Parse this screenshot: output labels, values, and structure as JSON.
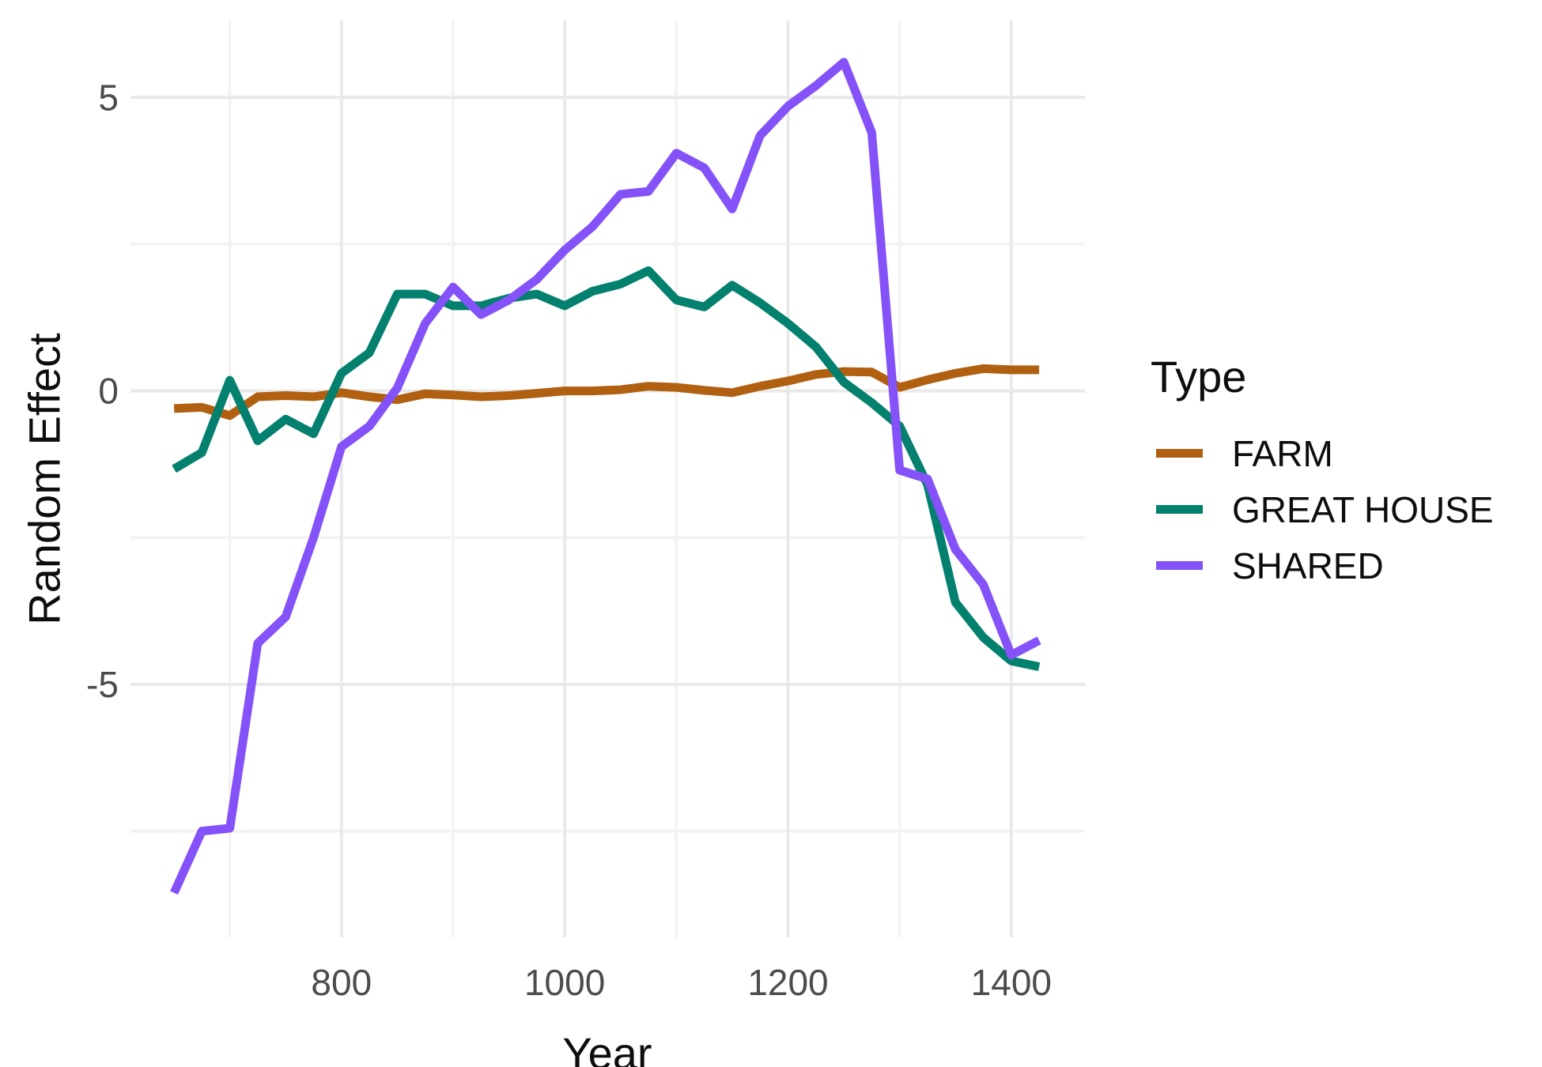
{
  "chart_data": {
    "type": "line",
    "title": "",
    "xlabel": "Year",
    "ylabel": "Random Effect",
    "legend_title": "Type",
    "legend_position": "right",
    "grid": true,
    "xlim": [
      611,
      1466
    ],
    "ylim": [
      -9.31,
      6.31
    ],
    "x_major_ticks": [
      800,
      1000,
      1200,
      1400
    ],
    "x_minor_ticks": [
      700,
      900,
      1100,
      1300
    ],
    "y_major_ticks": [
      5,
      0,
      -5
    ],
    "y_minor_ticks": [
      2.5,
      -2.5,
      -7.5
    ],
    "x": [
      650,
      675,
      700,
      725,
      750,
      775,
      800,
      825,
      850,
      875,
      900,
      925,
      950,
      975,
      1000,
      1025,
      1050,
      1075,
      1100,
      1125,
      1150,
      1175,
      1200,
      1225,
      1250,
      1275,
      1300,
      1325,
      1350,
      1375,
      1400,
      1425
    ],
    "series": [
      {
        "name": "FARM",
        "color": "#b06010",
        "values": [
          -0.3,
          -0.28,
          -0.42,
          -0.1,
          -0.08,
          -0.1,
          -0.03,
          -0.1,
          -0.15,
          -0.05,
          -0.07,
          -0.1,
          -0.08,
          -0.04,
          0.0,
          0.0,
          0.02,
          0.08,
          0.06,
          0.01,
          -0.03,
          0.08,
          0.17,
          0.28,
          0.33,
          0.32,
          0.06,
          0.19,
          0.3,
          0.38,
          0.36,
          0.36
        ]
      },
      {
        "name": "GREAT HOUSE",
        "color": "#04806f",
        "values": [
          -1.33,
          -1.05,
          0.18,
          -0.85,
          -0.48,
          -0.73,
          0.3,
          0.65,
          1.65,
          1.65,
          1.45,
          1.45,
          1.58,
          1.65,
          1.45,
          1.7,
          1.82,
          2.05,
          1.55,
          1.43,
          1.8,
          1.5,
          1.15,
          0.75,
          0.15,
          -0.2,
          -0.6,
          -1.6,
          -3.6,
          -4.2,
          -4.6,
          -4.7
        ]
      },
      {
        "name": "SHARED",
        "color": "#8452f8",
        "values": [
          -8.55,
          -7.5,
          -7.45,
          -4.3,
          -3.85,
          -2.5,
          -0.95,
          -0.6,
          0.05,
          1.15,
          1.77,
          1.3,
          1.55,
          1.9,
          2.4,
          2.8,
          3.35,
          3.4,
          4.05,
          3.8,
          3.1,
          4.35,
          4.85,
          5.2,
          5.6,
          4.4,
          -1.35,
          -1.5,
          -2.7,
          -3.3,
          -4.5,
          -4.25
        ]
      }
    ],
    "style": {
      "major_grid_color": "#e9e9e9",
      "minor_grid_color": "#f2f2f2",
      "tick_label_color": "#4c4c4c",
      "axis_title_color": "#0d0d0d",
      "background": "#ffffff",
      "line_width": 11
    }
  }
}
